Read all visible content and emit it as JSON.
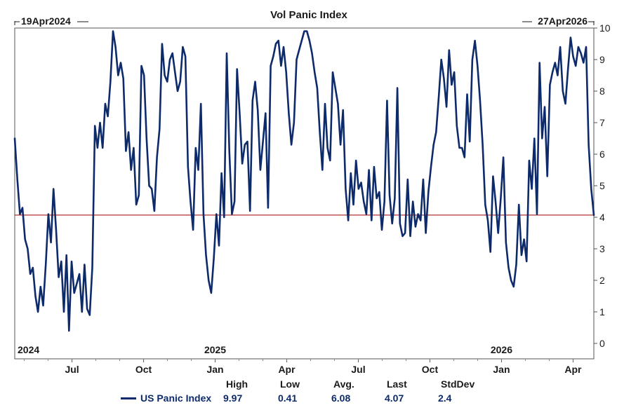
{
  "chart_data": {
    "type": "line",
    "title": "Vol Panic Index",
    "start_label": "19Apr2024",
    "end_label": "27Apr2026",
    "year_labels": [
      "2024",
      "2025",
      "2026"
    ],
    "month_ticks": [
      "Jul",
      "Oct",
      "Jan",
      "Apr",
      "Jul",
      "Oct",
      "Jan",
      "Apr"
    ],
    "ylim": [
      0,
      10
    ],
    "yticks": [
      "0",
      "1",
      "2",
      "3",
      "4",
      "5",
      "6",
      "7",
      "8",
      "9",
      "10"
    ],
    "reference_line": 4.07,
    "reference_color": "#b03030",
    "line_color": "#0d2a6b",
    "series": [
      {
        "name": "US Panic Index",
        "x_start": 0,
        "x_end": 24.27,
        "values": [
          6.5,
          5.2,
          4.1,
          4.3,
          3.3,
          3.0,
          2.2,
          2.4,
          1.5,
          1.0,
          1.8,
          1.2,
          2.5,
          4.1,
          3.2,
          4.9,
          3.6,
          2.1,
          2.6,
          1.0,
          2.8,
          0.4,
          2.6,
          1.6,
          1.9,
          2.2,
          1.0,
          2.5,
          1.1,
          0.9,
          2.4,
          6.9,
          6.2,
          7.0,
          6.2,
          7.6,
          7.2,
          8.3,
          9.9,
          9.4,
          8.5,
          8.9,
          8.4,
          6.1,
          6.7,
          5.5,
          6.2,
          4.4,
          4.7,
          8.8,
          8.5,
          6.5,
          5.0,
          4.9,
          4.2,
          5.9,
          6.8,
          9.5,
          8.5,
          8.3,
          9.0,
          9.2,
          8.6,
          8.0,
          8.3,
          9.4,
          9.1,
          5.6,
          4.5,
          3.6,
          6.2,
          5.5,
          7.6,
          4.1,
          2.8,
          2.0,
          1.6,
          2.7,
          4.1,
          3.1,
          5.4,
          4.0,
          9.2,
          6.1,
          4.1,
          4.5,
          8.7,
          7.3,
          5.7,
          6.3,
          6.4,
          4.2,
          7.7,
          8.3,
          7.4,
          5.5,
          6.4,
          7.3,
          4.3,
          8.8,
          9.1,
          9.5,
          9.6,
          8.8,
          9.4,
          8.6,
          7.3,
          6.3,
          7.0,
          9.0,
          9.3,
          9.6,
          9.9,
          9.9,
          9.6,
          9.2,
          8.6,
          8.1,
          6.7,
          5.5,
          7.6,
          6.2,
          5.8,
          8.6,
          8.1,
          7.6,
          6.3,
          7.4,
          4.9,
          3.9,
          5.4,
          4.4,
          5.8,
          4.9,
          5.1,
          4.5,
          4.1,
          5.5,
          3.9,
          5.6,
          4.6,
          4.8,
          3.6,
          4.5,
          7.7,
          4.7,
          3.8,
          4.6,
          8.1,
          3.8,
          3.4,
          3.5,
          5.2,
          3.4,
          4.5,
          3.7,
          4.1,
          3.9,
          5.2,
          3.5,
          4.8,
          5.6,
          6.3,
          6.7,
          7.8,
          9.0,
          8.4,
          7.5,
          9.3,
          8.2,
          8.6,
          6.9,
          6.2,
          6.2,
          5.9,
          7.9,
          6.4,
          9.0,
          9.6,
          8.8,
          7.7,
          6.3,
          4.4,
          3.9,
          2.9,
          5.3,
          4.5,
          3.5,
          4.6,
          5.9,
          3.2,
          2.4,
          2.0,
          1.8,
          2.5,
          4.4,
          2.8,
          3.3,
          2.6,
          5.8,
          4.9,
          6.5,
          4.1,
          8.9,
          6.5,
          7.5,
          5.3,
          8.2,
          8.6,
          8.9,
          8.5,
          9.4,
          8.0,
          7.6,
          8.7,
          9.7,
          9.1,
          8.8,
          9.4,
          9.2,
          8.9,
          9.4,
          6.3,
          4.9,
          4.07
        ]
      }
    ],
    "stats": {
      "high_label": "High",
      "low_label": "Low",
      "avg_label": "Avg.",
      "last_label": "Last",
      "stddev_label": "StdDev",
      "high": "9.97",
      "low": "0.41",
      "avg": "6.08",
      "last": "4.07",
      "stddev": "2.4"
    }
  }
}
